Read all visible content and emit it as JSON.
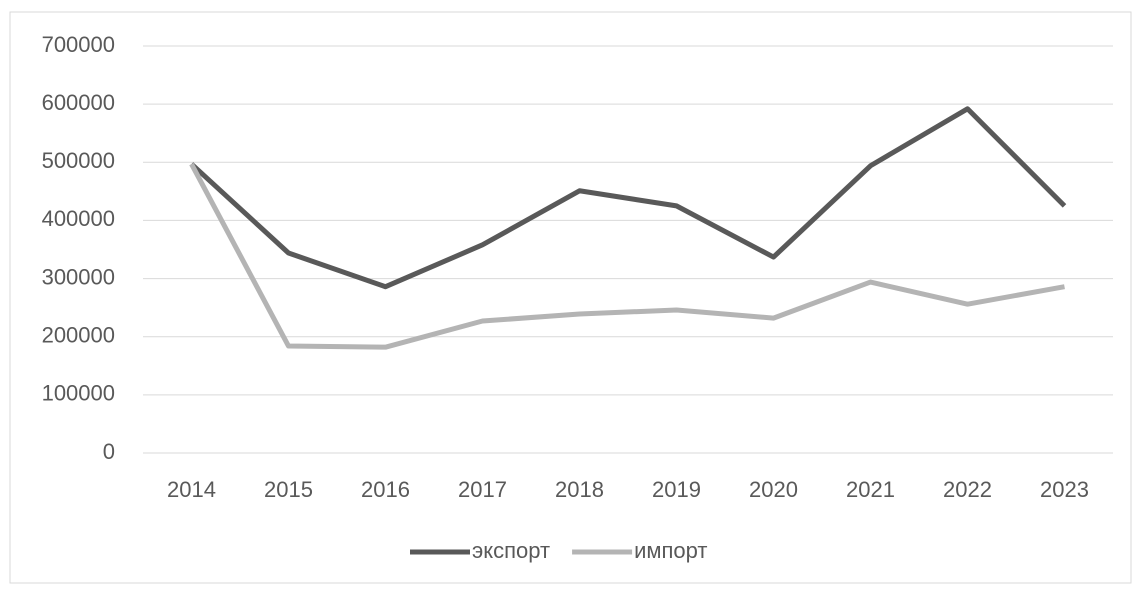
{
  "chart_data": {
    "type": "line",
    "categories": [
      "2014",
      "2015",
      "2016",
      "2017",
      "2018",
      "2019",
      "2020",
      "2021",
      "2022",
      "2023"
    ],
    "series": [
      {
        "name": "экспорт",
        "color": "#595959",
        "values": [
          497000,
          344000,
          286000,
          358000,
          451000,
          425000,
          337000,
          494000,
          592000,
          425000
        ]
      },
      {
        "name": "импорт",
        "color": "#b4b4b4",
        "values": [
          497000,
          184000,
          182000,
          227000,
          239000,
          246000,
          232000,
          294000,
          256000,
          286000
        ]
      }
    ],
    "ylim": [
      0,
      700000
    ],
    "yticks": [
      0,
      100000,
      200000,
      300000,
      400000,
      500000,
      600000,
      700000
    ],
    "grid": true,
    "legend": "bottom"
  }
}
